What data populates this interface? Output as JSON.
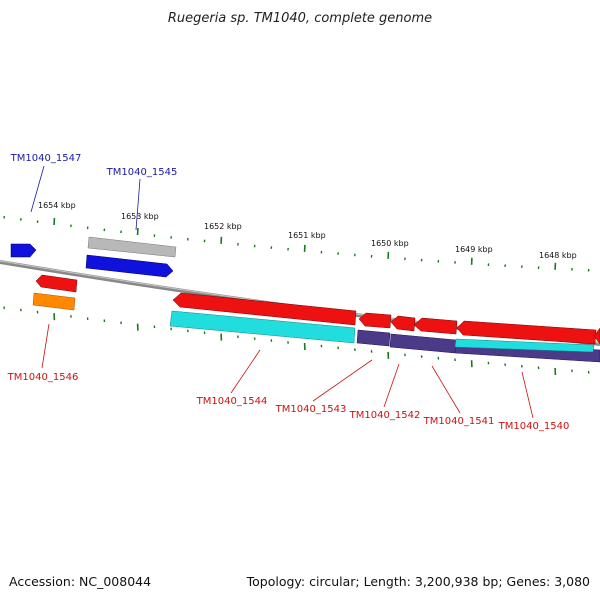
{
  "title": "Ruegeria sp. TM1040, complete genome",
  "footer": {
    "accession": "Accession: NC_008044",
    "summary": "Topology: circular; Length: 3,200,938 bp; Genes: 3,080"
  },
  "scale_labels": [
    "1654 kbp",
    "1653 kbp",
    "1652 kbp",
    "1651 kbp",
    "1650 kbp",
    "1649 kbp",
    "1648 kbp"
  ],
  "gene_labels": {
    "TM1040_1547": "TM1040_1547",
    "TM1040_1545": "TM1040_1545",
    "TM1040_1546": "TM1040_1546",
    "TM1040_1544": "TM1040_1544",
    "TM1040_1543": "TM1040_1543",
    "TM1040_1542": "TM1040_1542",
    "TM1040_1541": "TM1040_1541",
    "TM1040_1540": "TM1040_1540"
  },
  "colors": {
    "forward_label": "#1a1aa0",
    "reverse_label": "#cc1111",
    "cds_red": "#ee1111",
    "cds_blue": "#1111dd",
    "cds_cyan": "#22dddd",
    "cds_purple": "#4a3a88",
    "cds_orange": "#ff8800",
    "cds_gray": "#b8b8b8",
    "tick_green": "#1a7a1a",
    "backbone": "#888888"
  }
}
